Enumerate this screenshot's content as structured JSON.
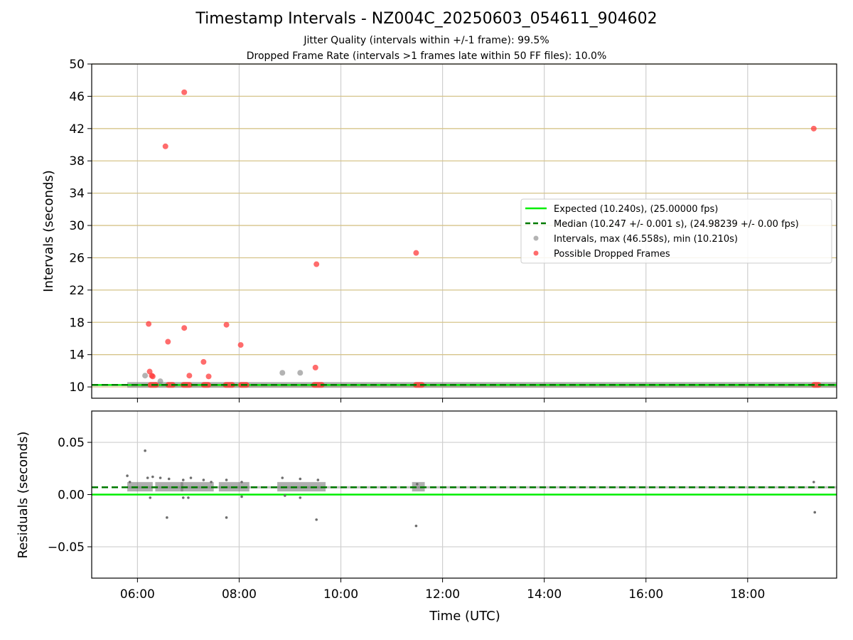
{
  "chart_data": [
    {
      "type": "scatter",
      "title": "Timestamp Intervals - NZ004C_20250603_054611_904602",
      "subtitle_lines": [
        "Jitter Quality (intervals within +/-1 frame): 99.5%",
        "Dropped Frame Rate (intervals >1 frames late within 50 FF files): 10.0%"
      ],
      "xlabel": "",
      "ylabel": "Intervals (seconds)",
      "xlim": [
        5.1,
        19.75
      ],
      "ylim": [
        8.6,
        50
      ],
      "yticks": [
        10,
        14,
        18,
        22,
        26,
        30,
        34,
        38,
        42,
        46,
        50
      ],
      "grid": true,
      "legend_position": "right",
      "legend": [
        "Expected (10.240s), (25.00000 fps)",
        "Median (10.247 +/- 0.001 s), (24.98239 +/- 0.00 fps)",
        "Intervals, max (46.558s), min (10.210s)",
        "Possible Dropped Frames"
      ],
      "expected": 10.24,
      "median": 10.247,
      "colors": {
        "expected": "#00ee00",
        "median": "#007a00",
        "intervals": "#808080",
        "dropped": "#ff3b3b",
        "ygrid": "#d6c48a",
        "xgrid": "#cfcfcf"
      },
      "baseline_span": [
        5.8,
        19.75
      ],
      "intervals_scattered": [
        {
          "x": 6.15,
          "y": 11.4
        },
        {
          "x": 6.45,
          "y": 10.7
        },
        {
          "x": 8.85,
          "y": 11.75
        },
        {
          "x": 9.2,
          "y": 11.75
        }
      ],
      "dropped_frames": [
        {
          "x": 6.22,
          "y": 17.8
        },
        {
          "x": 6.24,
          "y": 11.9
        },
        {
          "x": 6.28,
          "y": 11.4
        },
        {
          "x": 6.3,
          "y": 11.3
        },
        {
          "x": 6.55,
          "y": 39.8
        },
        {
          "x": 6.6,
          "y": 15.6
        },
        {
          "x": 6.92,
          "y": 46.5
        },
        {
          "x": 6.92,
          "y": 17.3
        },
        {
          "x": 7.02,
          "y": 11.4
        },
        {
          "x": 7.3,
          "y": 13.1
        },
        {
          "x": 7.4,
          "y": 11.3
        },
        {
          "x": 7.75,
          "y": 17.7
        },
        {
          "x": 8.03,
          "y": 15.2
        },
        {
          "x": 9.5,
          "y": 12.4
        },
        {
          "x": 9.52,
          "y": 25.2
        },
        {
          "x": 11.48,
          "y": 26.6
        },
        {
          "x": 19.3,
          "y": 42
        }
      ],
      "dropped_clusters": [
        [
          6.2,
          6.42
        ],
        [
          6.55,
          6.75
        ],
        [
          6.85,
          7.08
        ],
        [
          7.25,
          7.45
        ],
        [
          7.68,
          7.92
        ],
        [
          7.98,
          8.2
        ],
        [
          9.42,
          9.68
        ],
        [
          11.42,
          11.65
        ],
        [
          19.25,
          19.45
        ]
      ]
    },
    {
      "type": "scatter",
      "title": "",
      "xlabel": "Time (UTC)",
      "ylabel": "Residuals (seconds)",
      "xlim": [
        5.1,
        19.75
      ],
      "ylim": [
        -0.08,
        0.08
      ],
      "yticks": [
        -0.05,
        0.0,
        0.05
      ],
      "ytick_labels": [
        "−0.05",
        "0.00",
        "0.05"
      ],
      "xticks": [
        6,
        8,
        10,
        12,
        14,
        16,
        18
      ],
      "xtick_labels": [
        "06:00",
        "08:00",
        "10:00",
        "12:00",
        "14:00",
        "16:00",
        "18:00"
      ],
      "grid": true,
      "expected": 0.0,
      "median": 0.007,
      "colors": {
        "expected": "#00ee00",
        "median": "#007a00",
        "residuals": "#6e6e6e",
        "grid": "#cfcfcf"
      },
      "residual_points": [
        {
          "x": 5.8,
          "y": 0.018
        },
        {
          "x": 5.85,
          "y": 0.012
        },
        {
          "x": 6.15,
          "y": 0.042
        },
        {
          "x": 6.2,
          "y": 0.016
        },
        {
          "x": 6.25,
          "y": -0.003
        },
        {
          "x": 6.3,
          "y": 0.017
        },
        {
          "x": 6.45,
          "y": 0.016
        },
        {
          "x": 6.58,
          "y": -0.022
        },
        {
          "x": 6.62,
          "y": 0.015
        },
        {
          "x": 6.9,
          "y": 0.014
        },
        {
          "x": 6.9,
          "y": -0.003
        },
        {
          "x": 7.05,
          "y": 0.016
        },
        {
          "x": 7.0,
          "y": -0.003
        },
        {
          "x": 7.3,
          "y": 0.014
        },
        {
          "x": 7.45,
          "y": 0.012
        },
        {
          "x": 7.75,
          "y": -0.022
        },
        {
          "x": 7.75,
          "y": 0.014
        },
        {
          "x": 8.05,
          "y": 0.012
        },
        {
          "x": 8.05,
          "y": -0.002
        },
        {
          "x": 8.85,
          "y": 0.016
        },
        {
          "x": 8.9,
          "y": -0.001
        },
        {
          "x": 9.2,
          "y": 0.015
        },
        {
          "x": 9.2,
          "y": -0.003
        },
        {
          "x": 9.52,
          "y": -0.024
        },
        {
          "x": 9.55,
          "y": 0.014
        },
        {
          "x": 11.48,
          "y": -0.03
        },
        {
          "x": 11.5,
          "y": 0.01
        },
        {
          "x": 19.32,
          "y": -0.017
        },
        {
          "x": 19.3,
          "y": 0.012
        }
      ],
      "residual_band": [
        [
          5.8,
          6.3
        ],
        [
          6.35,
          6.9
        ],
        [
          6.85,
          7.5
        ],
        [
          7.6,
          8.2
        ],
        [
          8.75,
          9.7
        ],
        [
          11.4,
          11.65
        ]
      ]
    }
  ]
}
